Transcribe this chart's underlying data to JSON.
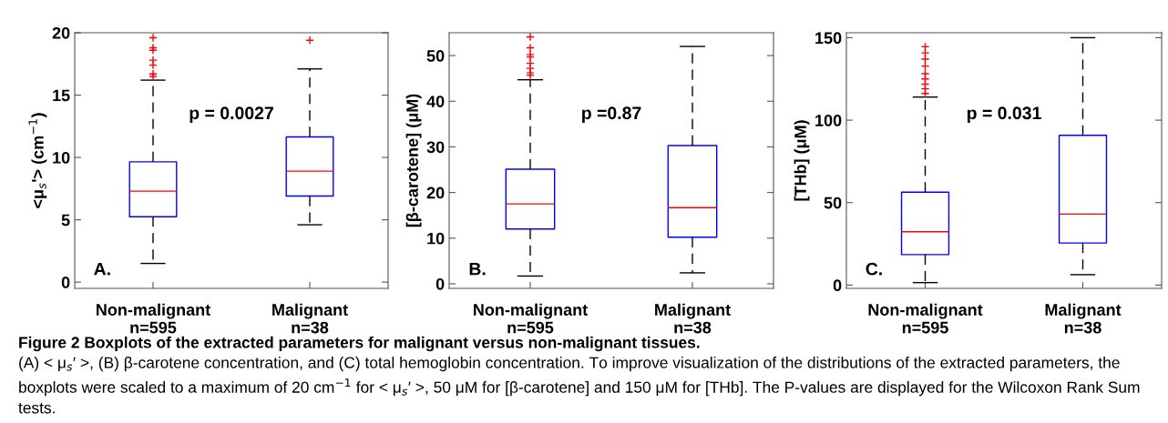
{
  "chart_data": [
    {
      "type": "box",
      "categories": [
        "Non-malignant\nn=595",
        "Malignant\nn=38"
      ],
      "ylabel": "<μ$_{s}$'> (cm$^{−1}$)",
      "ylim": [
        -0.5,
        20
      ],
      "yticks": [
        0,
        5,
        10,
        15,
        20
      ],
      "series": [
        {
          "color": "#0000ff",
          "boxes": [
            {
              "low": 1.5,
              "q1": 5.25,
              "median": 7.3,
              "q3": 9.65,
              "high": 16.2,
              "outliers": [
                16.5,
                16.7,
                17.4,
                17.8,
                18.6,
                18.8,
                19.6
              ]
            },
            {
              "low": 4.6,
              "q1": 6.9,
              "median": 8.9,
              "q3": 11.65,
              "high": 17.1,
              "outliers": [
                19.4
              ]
            }
          ]
        }
      ],
      "annotations": [
        "p = 0.0027",
        "A.",
        "Figure 2 Boxplots of the extracted parameters for malignant versus non-malignant tissues.",
        "(A) < μ$_{s}$′ >, (B) β-carotene concentration, and (C) total hemoglobin concentration. To improve visualization of the distributions of the extracted parameters, the boxplots were scaled to a maximum of 20 cm$^{−1}$ for < μ$_{s}$′ >, 50 μM for [β-carotene] and 150 μM for [THb]. The P-values are displayed for the Wilcoxon Rank Sum tests."
      ]
    },
    {
      "type": "box",
      "categories": [
        "Non-malignant\nn=595",
        "Malignant\nn=38"
      ],
      "ylabel": "[β-carotene] (μM)",
      "ylim": [
        -1,
        55
      ],
      "yticks": [
        0,
        10,
        20,
        30,
        40,
        50
      ],
      "series": [
        {
          "color": "#0000ff",
          "boxes": [
            {
              "low": 1.7,
              "q1": 12,
              "median": 17.5,
              "q3": 25.1,
              "high": 44.7,
              "outliers": [
                45.7,
                46.2,
                47.2,
                48.3,
                49.7,
                50.2,
                51.7,
                54.1
              ]
            },
            {
              "low": 2.4,
              "q1": 10.2,
              "median": 16.7,
              "q3": 30.3,
              "high": 52
            }
          ]
        }
      ],
      "annotations": [
        "p =0.87",
        "B."
      ]
    },
    {
      "type": "box",
      "categories": [
        "Non-malignant\nn=595",
        "Malignant\nn=38"
      ],
      "ylabel": "[THb] (μM)",
      "ylim": [
        -2,
        153
      ],
      "yticks": [
        0,
        50,
        100,
        150
      ],
      "series": [
        {
          "color": "#0000ff",
          "boxes": [
            {
              "low": 1.5,
              "q1": 18.5,
              "median": 32.3,
              "q3": 56.3,
              "high": 114,
              "outliers": [
                116.2,
                119,
                121.8,
                125,
                128.2,
                132.8,
                137,
                140.8,
                144.5
              ]
            },
            {
              "low": 6.3,
              "q1": 25.5,
              "median": 43,
              "q3": 90.8,
              "high": 150
            }
          ]
        }
      ],
      "annotations": [
        "p = 0.031",
        "C."
      ]
    }
  ]
}
